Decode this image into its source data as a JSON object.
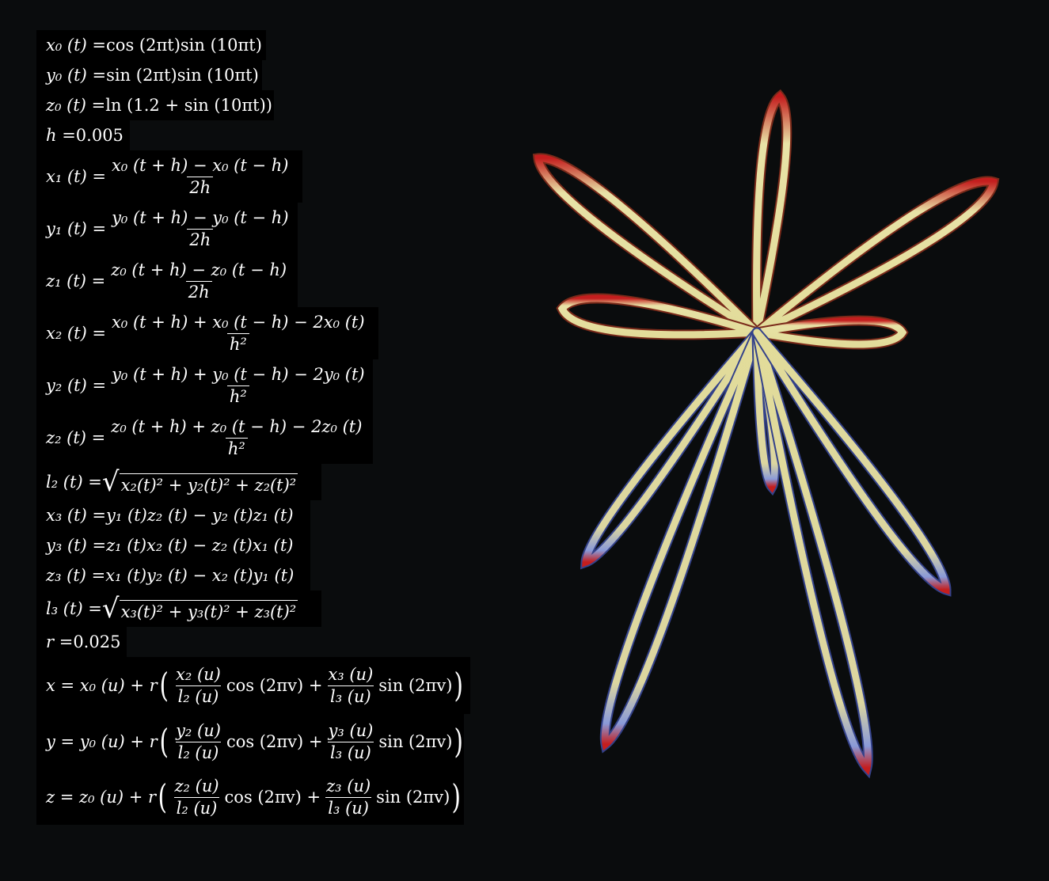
{
  "equations": {
    "x0": {
      "lhs": "x₀ (t) = ",
      "rhs": "cos (2πt)sin (10πt)"
    },
    "y0": {
      "lhs": "y₀ (t) = ",
      "rhs": "sin (2πt)sin (10πt)"
    },
    "z0": {
      "lhs": "z₀ (t) = ",
      "rhs": "ln (1.2 + sin (10πt))"
    },
    "h": {
      "lhs": "h = ",
      "rhs": "0.005"
    },
    "x1": {
      "lhs": "x₁ (t) = ",
      "num": "x₀ (t + h) − x₀ (t − h)",
      "den": "2h"
    },
    "y1": {
      "lhs": "y₁ (t) = ",
      "num": "y₀ (t + h) − y₀ (t − h)",
      "den": "2h"
    },
    "z1": {
      "lhs": "z₁ (t) = ",
      "num": "z₀ (t + h) − z₀ (t − h)",
      "den": "2h"
    },
    "x2": {
      "lhs": "x₂ (t) = ",
      "num": "x₀ (t + h) + x₀ (t − h) − 2x₀ (t)",
      "den": "h²"
    },
    "y2": {
      "lhs": "y₂ (t) = ",
      "num": "y₀ (t + h) + y₀ (t − h) − 2y₀ (t)",
      "den": "h²"
    },
    "z2": {
      "lhs": "z₂ (t) = ",
      "num": "z₀ (t + h) + z₀ (t − h) − 2z₀ (t)",
      "den": "h²"
    },
    "l2": {
      "lhs": "l₂ (t) = ",
      "radicand": "x₂(t)² + y₂(t)² + z₂(t)²"
    },
    "x3": {
      "lhs": "x₃ (t) = ",
      "rhs": "y₁ (t)z₂ (t) − y₂ (t)z₁ (t)"
    },
    "y3": {
      "lhs": "y₃ (t) = ",
      "rhs": "z₁ (t)x₂ (t) − z₂ (t)x₁ (t)"
    },
    "z3": {
      "lhs": "z₃ (t) = ",
      "rhs": "x₁ (t)y₂ (t) − x₂ (t)y₁ (t)"
    },
    "l3": {
      "lhs": "l₃ (t) = ",
      "radicand": "x₃(t)² + y₃(t)² + z₃(t)²"
    },
    "r": {
      "lhs": "r = ",
      "rhs": "0.025"
    },
    "x": {
      "lhs": "x = x₀ (u) + r",
      "n1": "x₂ (u)",
      "d1": "l₂ (u)",
      "mid": "cos (2πv) + ",
      "n2": "x₃ (u)",
      "d2": "l₃ (u)",
      "tail": "sin (2πv)"
    },
    "y": {
      "lhs": "y = y₀ (u) + r",
      "n1": "y₂ (u)",
      "d1": "l₂ (u)",
      "mid": "cos (2πv) + ",
      "n2": "y₃ (u)",
      "d2": "l₃ (u)",
      "tail": "sin (2πv)"
    },
    "z": {
      "lhs": "z = z₀ (u) + r",
      "n1": "z₂ (u)",
      "d1": "l₂ (u)",
      "mid": "cos (2πv) + ",
      "n2": "z₃ (u)",
      "d2": "l₃ (u)",
      "tail": "sin (2πv)"
    }
  },
  "colors": {
    "background": "#0a0c0d",
    "equation_box": "#000000",
    "tube_base": "#e2dc9a",
    "tube_curvature_high": "#c41e1e",
    "tube_curvature_low": "#3a55c8"
  }
}
